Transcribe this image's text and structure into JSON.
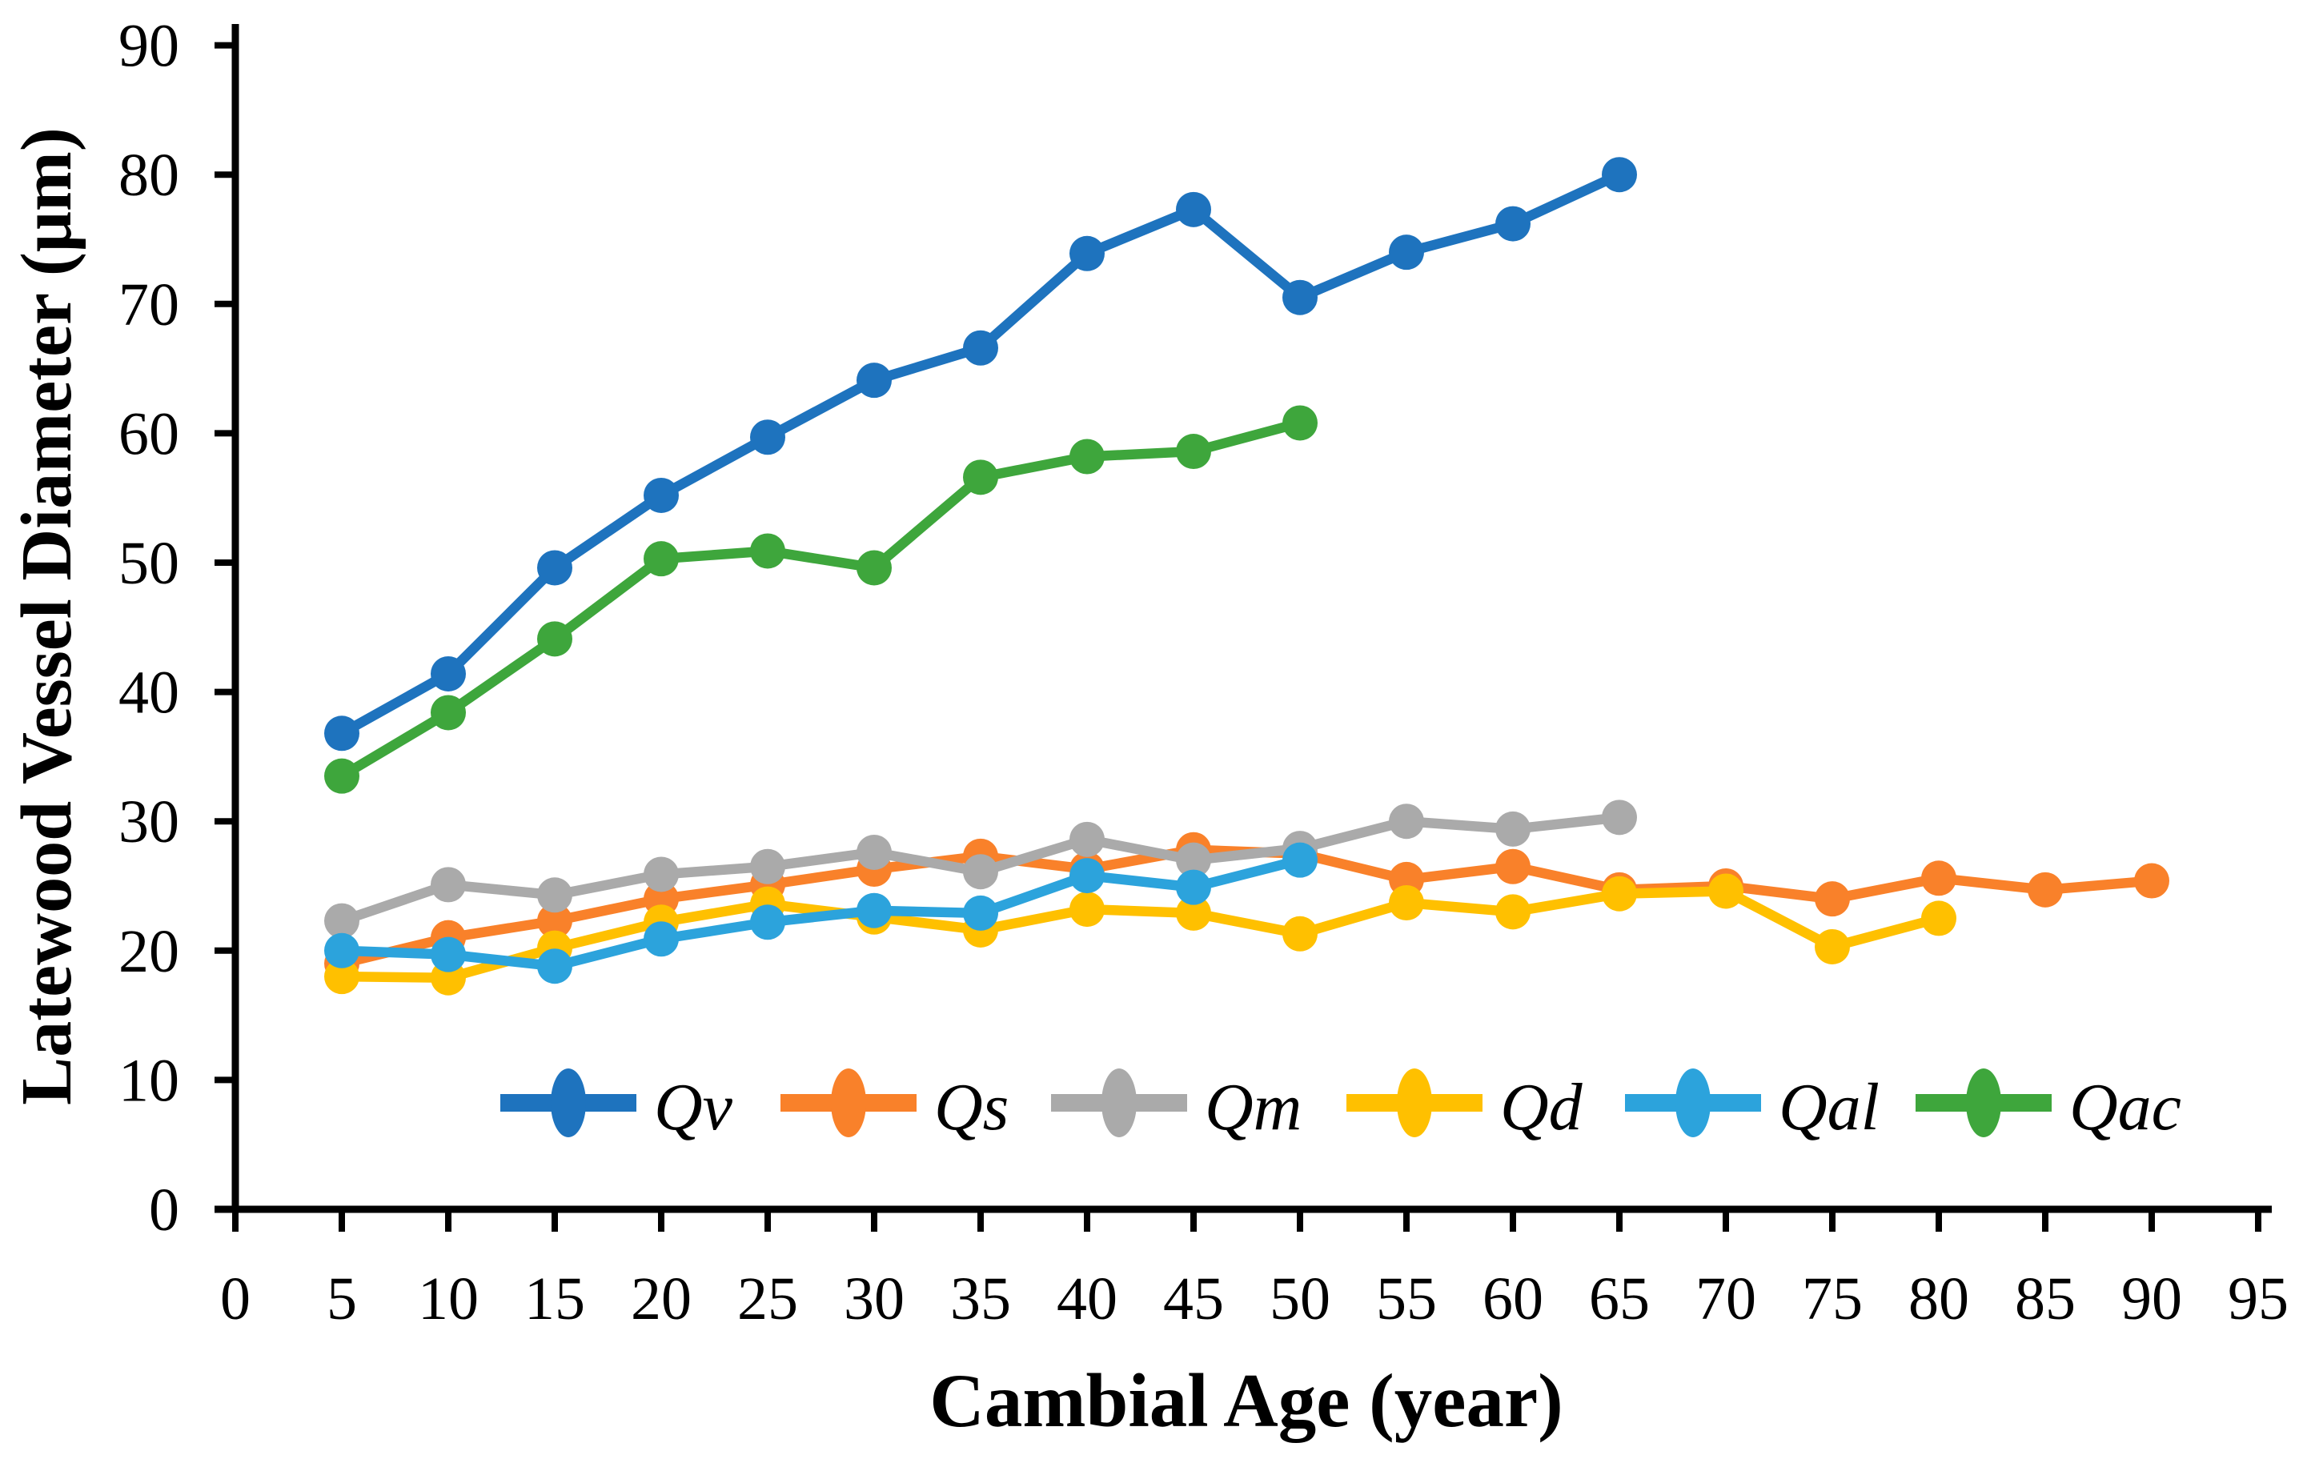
{
  "chart_data": {
    "type": "line",
    "title": "",
    "xlabel": "Cambial Age (year)",
    "ylabel": "Latewood Vessel Diameter (μm)",
    "xlim": [
      0,
      95
    ],
    "ylim": [
      0,
      90
    ],
    "x_ticks": [
      0,
      5,
      10,
      15,
      20,
      25,
      30,
      35,
      40,
      45,
      50,
      55,
      60,
      65,
      70,
      75,
      80,
      85,
      90,
      95
    ],
    "y_ticks": [
      0,
      10,
      20,
      30,
      40,
      50,
      60,
      70,
      80,
      90
    ],
    "grid": false,
    "legend_position": "inside-bottom",
    "axis_color": "#000000",
    "series": [
      {
        "name": "Qv",
        "color": "#1E73BE",
        "x": [
          5,
          10,
          15,
          20,
          25,
          30,
          35,
          40,
          45,
          50,
          55,
          60,
          65
        ],
        "values": [
          36.8,
          41.4,
          49.6,
          55.2,
          59.7,
          64.1,
          66.6,
          73.9,
          77.3,
          70.5,
          74.0,
          76.2,
          80.0
        ]
      },
      {
        "name": "Qs",
        "color": "#F9812A",
        "x": [
          5,
          10,
          15,
          20,
          25,
          30,
          35,
          40,
          45,
          50,
          55,
          60,
          65,
          70,
          75,
          80,
          85,
          90
        ],
        "values": [
          19.0,
          21.0,
          22.3,
          24.0,
          25.1,
          26.3,
          27.3,
          26.3,
          27.8,
          27.5,
          25.5,
          26.5,
          24.7,
          25.0,
          24.0,
          25.6,
          24.7,
          25.4
        ]
      },
      {
        "name": "Qm",
        "color": "#AAAAAA",
        "x": [
          5,
          10,
          15,
          20,
          25,
          30,
          35,
          40,
          45,
          50,
          55,
          60,
          65
        ],
        "values": [
          22.3,
          25.1,
          24.3,
          25.9,
          26.5,
          27.6,
          26.1,
          28.6,
          27.0,
          27.9,
          30.0,
          29.4,
          30.3
        ]
      },
      {
        "name": "Qd",
        "color": "#FFC000",
        "x": [
          5,
          10,
          15,
          20,
          25,
          30,
          35,
          40,
          45,
          50,
          55,
          60,
          65,
          70,
          75,
          80
        ],
        "values": [
          18.0,
          17.9,
          20.2,
          22.2,
          23.6,
          22.6,
          21.6,
          23.2,
          22.9,
          21.3,
          23.7,
          23.0,
          24.4,
          24.6,
          20.3,
          22.5
        ]
      },
      {
        "name": "Qal",
        "color": "#2CA3DC",
        "x": [
          5,
          10,
          15,
          20,
          25,
          30,
          35,
          40,
          45,
          50
        ],
        "values": [
          20.0,
          19.7,
          18.8,
          20.9,
          22.2,
          23.1,
          22.9,
          25.8,
          24.9,
          27.0
        ]
      },
      {
        "name": "Qac",
        "color": "#3EA63C",
        "x": [
          5,
          10,
          15,
          20,
          25,
          30,
          35,
          40,
          45,
          50
        ],
        "values": [
          33.5,
          38.4,
          44.1,
          50.3,
          50.9,
          49.6,
          56.6,
          58.2,
          58.6,
          60.8
        ]
      }
    ],
    "legend_items": [
      "Qv",
      "Qs",
      "Qm",
      "Qd",
      "Qal",
      "Qac"
    ]
  }
}
